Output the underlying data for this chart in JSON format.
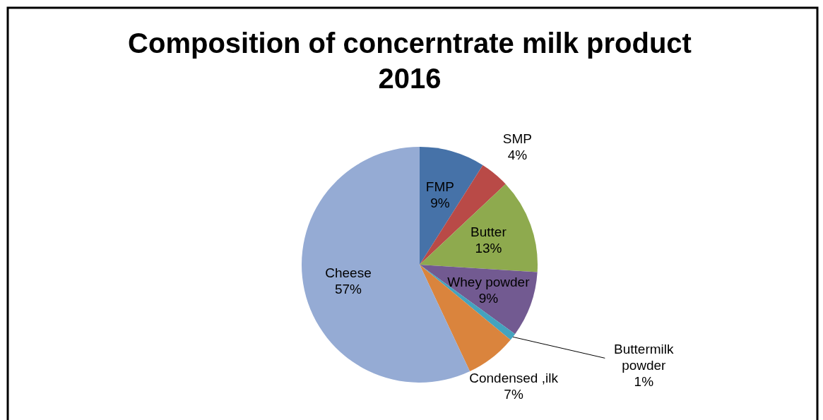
{
  "chart_data": {
    "type": "pie",
    "title": "Composition of concerntrate milk product 2016",
    "categories": [
      "FMP",
      "SMP",
      "Butter",
      "Whey powder",
      "Buttermilk powder",
      "Condensed ,ilk",
      "Cheese"
    ],
    "values": [
      9,
      4,
      13,
      9,
      1,
      7,
      57
    ],
    "value_labels": [
      "9%",
      "4%",
      "13%",
      "9%",
      "1%",
      "7%",
      "57%"
    ],
    "colors": [
      "#4672a8",
      "#b94a47",
      "#8eaa4e",
      "#725a91",
      "#44a3be",
      "#da843d",
      "#95abd4"
    ]
  }
}
